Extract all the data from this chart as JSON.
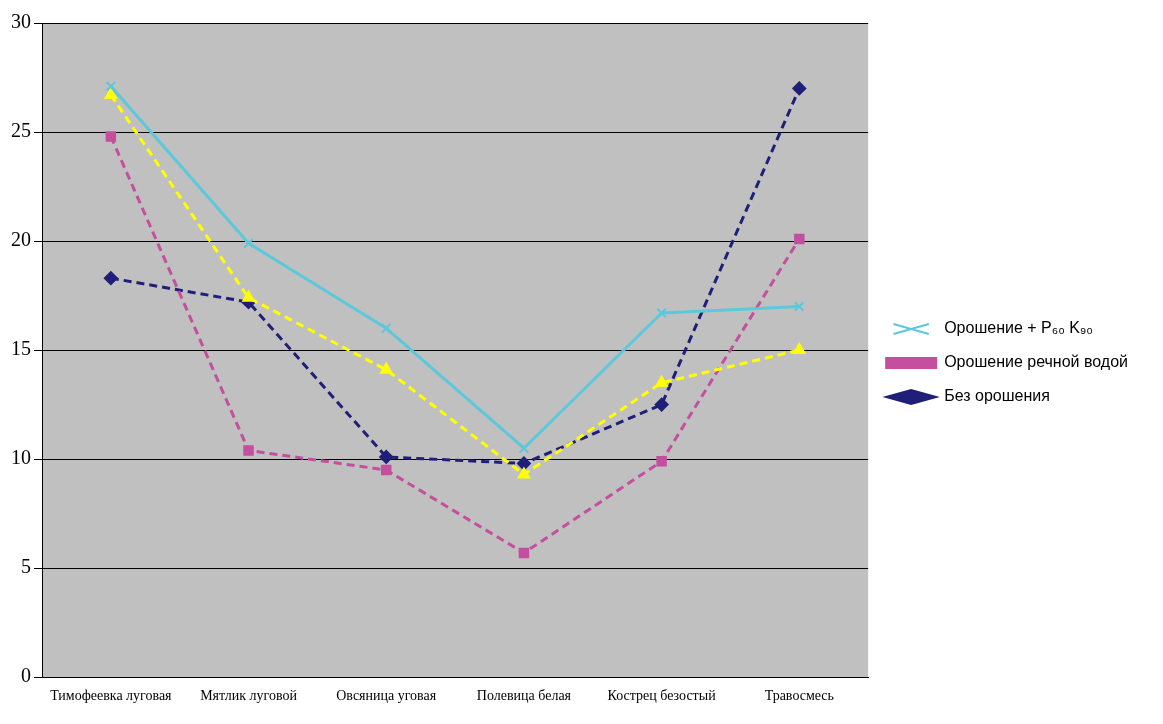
{
  "chart_data": {
    "type": "line",
    "categories": [
      "Тимофеевка луговая",
      "Мятлик луговой",
      "Овсяница уговая",
      "Полевица белая",
      "Кострец безостый",
      "Травосмесь"
    ],
    "ylim": [
      0,
      30
    ],
    "yticks": [
      0,
      5,
      10,
      15,
      20,
      25,
      30
    ],
    "grid": "y",
    "legend": "right",
    "series": [
      {
        "name": "Без орошения",
        "color": "#1f1f7a",
        "marker": "diamond",
        "line_style": "dashed",
        "values": [
          18.3,
          17.2,
          10.1,
          9.8,
          12.5,
          27.0
        ]
      },
      {
        "name": "Орошение речной водой",
        "color": "#c44f9e",
        "marker": "square",
        "line_style": "dashed",
        "values": [
          24.8,
          10.4,
          9.5,
          5.7,
          9.9,
          20.1
        ]
      },
      {
        "color": "#ffff00",
        "marker": "triangle",
        "line_style": "dashed",
        "values": [
          26.7,
          17.4,
          14.1,
          9.3,
          13.5,
          15.0
        ]
      },
      {
        "name": "Орошение + P₆₀ K₉₀",
        "color": "#5bc8dc",
        "marker": "cross",
        "line_style": "solid",
        "values": [
          27.1,
          19.9,
          16.0,
          10.5,
          16.7,
          17.0
        ]
      }
    ]
  }
}
